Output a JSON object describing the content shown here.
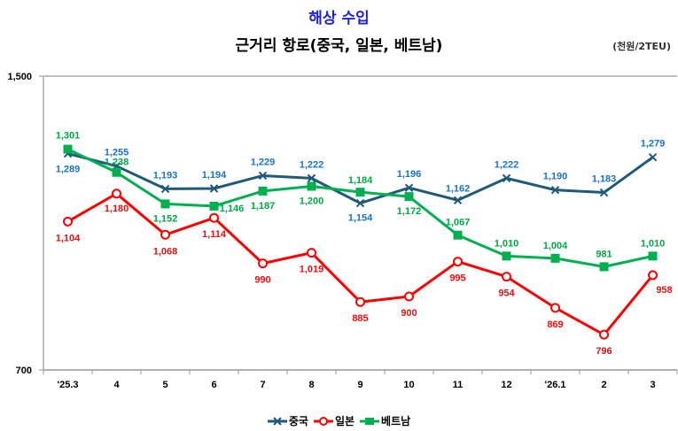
{
  "chart_data": {
    "type": "line",
    "title": "해상 수입",
    "subtitle": "근거리 항로(중국, 일본, 베트남)",
    "unit_label": "(천원/2TEU)",
    "xlabel": "",
    "ylabel": "",
    "ylim": [
      700,
      1500
    ],
    "yticks": [
      "1,500",
      "700"
    ],
    "ytick_values": [
      1500,
      700
    ],
    "grid": false,
    "legend_position": "bottom",
    "categories": [
      "'25.3",
      "4",
      "5",
      "6",
      "7",
      "8",
      "9",
      "10",
      "11",
      "12",
      "'26.1",
      "2",
      "3"
    ],
    "series": [
      {
        "name": "중국",
        "color": "#1f5a7a",
        "label_color": "#1a73c7",
        "marker": "x",
        "values": [
          1289,
          1255,
          1193,
          1194,
          1229,
          1222,
          1154,
          1196,
          1162,
          1222,
          1190,
          1183,
          1279
        ],
        "labels": [
          "1,289",
          "1,255",
          "1,193",
          "1,194",
          "1,229",
          "1,222",
          "1,154",
          "1,196",
          "1,162",
          "1,222",
          "1,190",
          "1,183",
          "1,279"
        ]
      },
      {
        "name": "일본",
        "color": "#ff0000",
        "label_color": "#e81010",
        "marker": "circle",
        "values": [
          1104,
          1180,
          1068,
          1114,
          990,
          1019,
          885,
          900,
          995,
          954,
          869,
          796,
          958
        ],
        "labels": [
          "1,104",
          "1,180",
          "1,068",
          "1,114",
          "990",
          "1,019",
          "885",
          "900",
          "995",
          "954",
          "869",
          "796",
          "958"
        ]
      },
      {
        "name": "베트남",
        "color": "#00b050",
        "label_color": "#00a844",
        "marker": "square",
        "values": [
          1301,
          1238,
          1152,
          1146,
          1187,
          1200,
          1184,
          1172,
          1067,
          1010,
          1004,
          981,
          1010
        ],
        "labels": [
          "1,301",
          "1,238",
          "1,152",
          "1,146",
          "1,187",
          "1,200",
          "1,184",
          "1,172",
          "1,067",
          "1,010",
          "1,004",
          "981",
          "1,010"
        ]
      }
    ]
  }
}
